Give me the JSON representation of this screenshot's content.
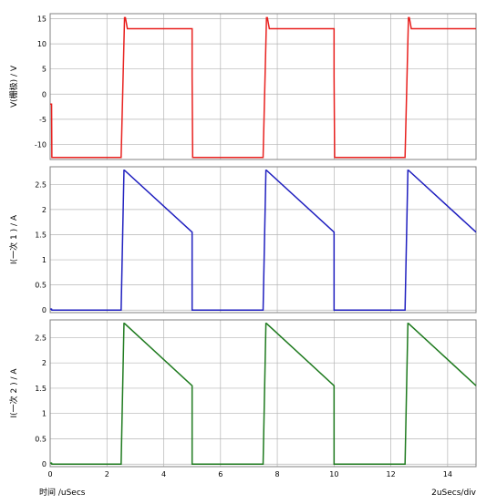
{
  "footer": {
    "xaxis_label": "时间 /uSecs",
    "scale_label": "2uSecs/div"
  },
  "colors": {
    "panel1": "#e8201e",
    "panel2": "#1f1fbf",
    "panel3": "#1e7a1e",
    "grid": "#b5b5b5"
  },
  "chart_data": [
    {
      "type": "line",
      "ylabel": "V(栅极) / V",
      "xlim": [
        0,
        15
      ],
      "ylim": [
        -13,
        16
      ],
      "xticks": [
        0,
        2,
        4,
        6,
        8,
        10,
        12,
        14
      ],
      "yticks": [
        -10,
        -5,
        0,
        5,
        10,
        15
      ],
      "ytick_labels": [
        "-10",
        "-5",
        "0",
        "5",
        "10",
        "15"
      ],
      "series": [
        {
          "x": [
            0,
            0.05,
            0.06,
            2.5,
            2.62,
            2.65,
            2.72,
            2.75,
            5.0,
            5.0,
            5.02,
            7.5,
            7.62,
            7.65,
            7.72,
            7.75,
            10.0,
            10.0,
            10.02,
            12.5,
            12.62,
            12.65,
            12.72,
            12.75,
            15.0
          ],
          "y": [
            -2,
            -2,
            -12.6,
            -12.6,
            15.2,
            15.2,
            13,
            13,
            13,
            3.5,
            -12.6,
            -12.6,
            15.2,
            15.2,
            13,
            13,
            13,
            3.5,
            -12.6,
            -12.6,
            15.2,
            15.2,
            13,
            13,
            13
          ]
        }
      ]
    },
    {
      "type": "line",
      "ylabel": "I(一次 1 ) / A",
      "xlim": [
        0,
        15
      ],
      "ylim": [
        -0.05,
        2.85
      ],
      "xticks": [
        0,
        2,
        4,
        6,
        8,
        10,
        12,
        14
      ],
      "yticks": [
        0,
        0.5,
        1.0,
        1.5,
        2.0,
        2.5
      ],
      "ytick_labels": [
        "0",
        "0.5",
        "1",
        "1.5",
        "2",
        "2.5"
      ],
      "series": [
        {
          "x": [
            0,
            0.05,
            0.06,
            2.5,
            2.6,
            2.62,
            5.0,
            5.0,
            5.02,
            7.5,
            7.6,
            7.62,
            10.0,
            10.0,
            10.02,
            12.5,
            12.6,
            12.62,
            15.0
          ],
          "y": [
            0.02,
            0.02,
            0.0,
            0.0,
            2.78,
            2.78,
            1.55,
            0.0,
            0.0,
            0.0,
            2.78,
            2.78,
            1.55,
            0.0,
            0.0,
            0.0,
            2.78,
            2.78,
            1.55
          ]
        }
      ]
    },
    {
      "type": "line",
      "ylabel": "I(一次 2 ) / A",
      "xlim": [
        0,
        15
      ],
      "ylim": [
        -0.05,
        2.85
      ],
      "xticks": [
        0,
        2,
        4,
        6,
        8,
        10,
        12,
        14
      ],
      "yticks": [
        0,
        0.5,
        1.0,
        1.5,
        2.0,
        2.5
      ],
      "ytick_labels": [
        "0",
        "0.5",
        "1",
        "1.5",
        "2",
        "2.5"
      ],
      "xtick_labels": [
        "0",
        "2",
        "4",
        "6",
        "8",
        "10",
        "12",
        "14"
      ],
      "series": [
        {
          "x": [
            0,
            0.05,
            0.06,
            2.5,
            2.6,
            2.62,
            5.0,
            5.0,
            5.02,
            7.5,
            7.6,
            7.62,
            10.0,
            10.0,
            10.02,
            12.5,
            12.6,
            12.62,
            15.0
          ],
          "y": [
            0.02,
            0.02,
            0.0,
            0.0,
            2.78,
            2.78,
            1.55,
            0.0,
            0.0,
            0.0,
            2.78,
            2.78,
            1.55,
            0.0,
            0.0,
            0.0,
            2.78,
            2.78,
            1.55
          ]
        }
      ]
    }
  ]
}
